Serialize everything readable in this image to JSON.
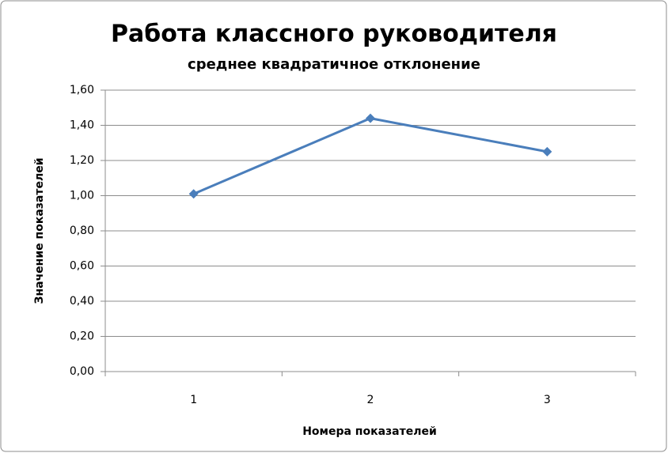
{
  "chart_data": {
    "type": "line",
    "title": "Работа классного руководителя",
    "subtitle": "среднее квадратичное отклонение",
    "y_label": "Значение показателей",
    "x_label": "Номера показателей",
    "categories": [
      "1",
      "2",
      "3"
    ],
    "series": [
      {
        "name": "",
        "color": "#4a7ebb",
        "values": [
          1.01,
          1.44,
          1.25
        ]
      }
    ],
    "ylim": [
      0,
      1.6
    ],
    "yticks": [
      {
        "value": 0,
        "label": "0,00"
      },
      {
        "value": 0.2,
        "label": "0,20"
      },
      {
        "value": 0.4,
        "label": "0,40"
      },
      {
        "value": 0.6,
        "label": "0,60"
      },
      {
        "value": 0.8,
        "label": "0,80"
      },
      {
        "value": 1.0,
        "label": "1,00"
      },
      {
        "value": 1.2,
        "label": "1,20"
      },
      {
        "value": 1.4,
        "label": "1,40"
      },
      {
        "value": 1.6,
        "label": "1,60"
      }
    ],
    "grid": true
  }
}
